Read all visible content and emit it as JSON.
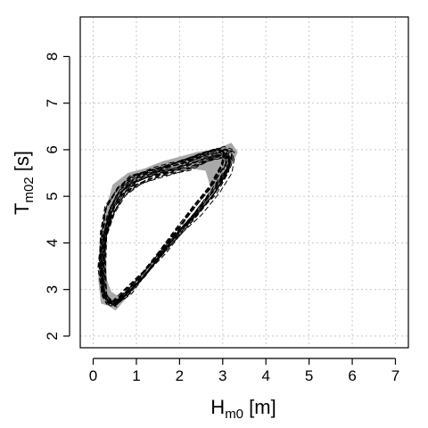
{
  "chart_data": {
    "type": "line",
    "xlabel": {
      "main": "H",
      "sub": "m0",
      "unit": " [m]"
    },
    "ylabel": {
      "main": "T",
      "sub": "m02",
      "unit": " [s]"
    },
    "xlim": [
      -0.3,
      7.3
    ],
    "ylim": [
      1.75,
      8.85
    ],
    "xticks": [
      0,
      1,
      2,
      3,
      4,
      5,
      6,
      7
    ],
    "yticks": [
      2,
      3,
      4,
      5,
      6,
      7,
      8
    ],
    "grid": true,
    "legend": "none",
    "colors": {
      "band": "#a9a9a9",
      "lines": "#000000",
      "grid": "#c8c8c8"
    },
    "band": {
      "outer": [
        [
          0.52,
          2.55
        ],
        [
          0.8,
          2.85
        ],
        [
          1.3,
          3.4
        ],
        [
          1.8,
          3.95
        ],
        [
          2.3,
          4.5
        ],
        [
          2.8,
          5.05
        ],
        [
          3.15,
          5.55
        ],
        [
          3.35,
          5.95
        ],
        [
          3.2,
          6.15
        ],
        [
          2.8,
          6.0
        ],
        [
          2.4,
          5.95
        ],
        [
          2.0,
          5.85
        ],
        [
          1.6,
          5.75
        ],
        [
          1.2,
          5.6
        ],
        [
          0.8,
          5.5
        ],
        [
          0.45,
          5.25
        ],
        [
          0.25,
          4.6
        ],
        [
          0.15,
          4.0
        ],
        [
          0.12,
          3.2
        ],
        [
          0.18,
          2.7
        ],
        [
          0.35,
          2.65
        ]
      ],
      "inner": [
        [
          0.28,
          4.0
        ],
        [
          0.32,
          3.2
        ],
        [
          0.42,
          2.95
        ],
        [
          0.6,
          2.85
        ],
        [
          0.9,
          3.1
        ],
        [
          1.4,
          3.6
        ],
        [
          1.9,
          4.15
        ],
        [
          2.4,
          4.7
        ],
        [
          2.75,
          5.1
        ],
        [
          2.6,
          5.55
        ],
        [
          2.2,
          5.6
        ],
        [
          1.8,
          5.55
        ],
        [
          1.4,
          5.45
        ],
        [
          1.0,
          5.3
        ],
        [
          0.65,
          5.05
        ],
        [
          0.4,
          4.55
        ]
      ]
    },
    "base_loop": [
      [
        0.5,
        2.7
      ],
      [
        0.8,
        2.95
      ],
      [
        1.2,
        3.35
      ],
      [
        1.6,
        3.8
      ],
      [
        2.0,
        4.25
      ],
      [
        2.4,
        4.7
      ],
      [
        2.8,
        5.15
      ],
      [
        3.1,
        5.6
      ],
      [
        3.15,
        5.9
      ],
      [
        2.95,
        5.95
      ],
      [
        2.6,
        5.85
      ],
      [
        2.2,
        5.7
      ],
      [
        1.8,
        5.6
      ],
      [
        1.4,
        5.5
      ],
      [
        1.0,
        5.35
      ],
      [
        0.65,
        5.1
      ],
      [
        0.4,
        4.7
      ],
      [
        0.25,
        4.2
      ],
      [
        0.2,
        3.5
      ],
      [
        0.25,
        2.9
      ],
      [
        0.4,
        2.72
      ],
      [
        0.5,
        2.7
      ]
    ],
    "series_count": 22,
    "band_label": "",
    "series_label": ""
  }
}
